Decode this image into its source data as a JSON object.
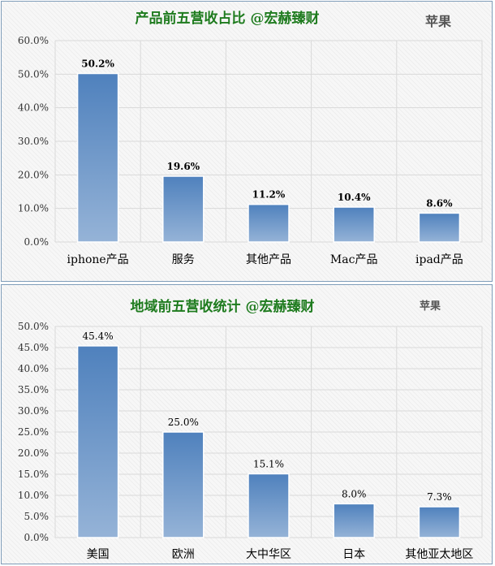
{
  "colors": {
    "title": "#1e7b1e",
    "brand": "#555555",
    "bar_top": "#4f81bd",
    "bar_bottom": "#95b3d7",
    "grid": "#d9d9d9"
  },
  "chart_data": [
    {
      "type": "bar",
      "title": "产品前五营收占比 @宏赫臻财",
      "brand": "苹果",
      "categories": [
        "iphone产品",
        "服务",
        "其他产品",
        "Mac产品",
        "ipad产品"
      ],
      "values": [
        50.2,
        19.6,
        11.2,
        10.4,
        8.6
      ],
      "data_labels": [
        "50.2%",
        "19.6%",
        "11.2%",
        "10.4%",
        "8.6%"
      ],
      "yticks": [
        0,
        10,
        20,
        30,
        40,
        50,
        60
      ],
      "ytick_labels": [
        "0.0%",
        "10.0%",
        "20.0%",
        "30.0%",
        "40.0%",
        "50.0%",
        "60.0%"
      ],
      "ylim": [
        0,
        60
      ],
      "xlabel": "",
      "ylabel": "",
      "grid": true,
      "legend": "none"
    },
    {
      "type": "bar",
      "title": "地域前五营收统计 @宏赫臻财",
      "brand": "苹果",
      "categories": [
        "美国",
        "欧洲",
        "大中华区",
        "日本",
        "其他亚太地区"
      ],
      "values": [
        45.4,
        25.0,
        15.1,
        8.0,
        7.3
      ],
      "data_labels": [
        "45.4%",
        "25.0%",
        "15.1%",
        "8.0%",
        "7.3%"
      ],
      "yticks": [
        0,
        5,
        10,
        15,
        20,
        25,
        30,
        35,
        40,
        45,
        50
      ],
      "ytick_labels": [
        "0.0%",
        "5.0%",
        "10.0%",
        "15.0%",
        "20.0%",
        "25.0%",
        "30.0%",
        "35.0%",
        "40.0%",
        "45.0%",
        "50.0%"
      ],
      "ylim": [
        0,
        50
      ],
      "xlabel": "",
      "ylabel": "",
      "grid": true,
      "legend": "none"
    }
  ]
}
